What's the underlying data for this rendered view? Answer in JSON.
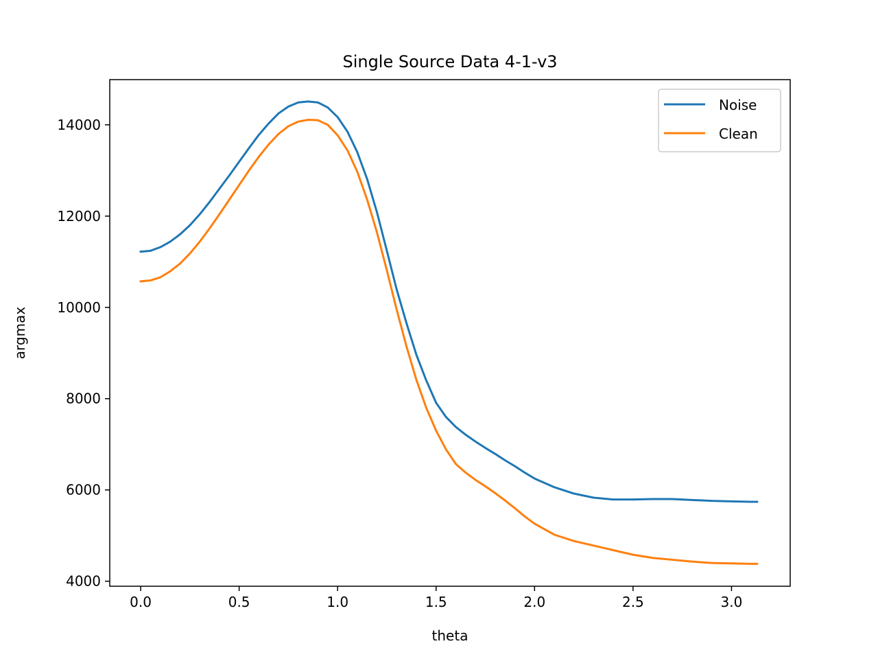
{
  "chart_data": {
    "type": "line",
    "title": "Single Source Data 4-1-v3",
    "xlabel": "theta",
    "ylabel": "argmax",
    "xlim": [
      -0.157,
      3.298
    ],
    "ylim": [
      3890,
      14990
    ],
    "xticks": [
      0.0,
      0.5,
      1.0,
      1.5,
      2.0,
      2.5,
      3.0
    ],
    "xtick_labels": [
      "0.0",
      "0.5",
      "1.0",
      "1.5",
      "2.0",
      "2.5",
      "3.0"
    ],
    "yticks": [
      4000,
      6000,
      8000,
      10000,
      12000,
      14000
    ],
    "ytick_labels": [
      "4000",
      "6000",
      "8000",
      "10000",
      "12000",
      "14000"
    ],
    "grid": false,
    "legend_position": "top-right",
    "series": [
      {
        "name": "Noise",
        "color": "#1f77b4",
        "x": [
          0.0,
          0.05,
          0.1,
          0.15,
          0.2,
          0.25,
          0.3,
          0.35,
          0.4,
          0.45,
          0.5,
          0.55,
          0.6,
          0.65,
          0.7,
          0.75,
          0.8,
          0.85,
          0.9,
          0.95,
          1.0,
          1.05,
          1.1,
          1.15,
          1.2,
          1.25,
          1.3,
          1.35,
          1.4,
          1.45,
          1.5,
          1.55,
          1.6,
          1.65,
          1.7,
          1.75,
          1.8,
          1.85,
          1.9,
          1.95,
          2.0,
          2.1,
          2.2,
          2.3,
          2.4,
          2.5,
          2.6,
          2.7,
          2.8,
          2.9,
          3.0,
          3.1,
          3.13
        ],
        "y": [
          11220,
          11240,
          11320,
          11440,
          11600,
          11800,
          12040,
          12310,
          12600,
          12890,
          13190,
          13490,
          13780,
          14030,
          14250,
          14400,
          14490,
          14510,
          14490,
          14380,
          14170,
          13850,
          13400,
          12810,
          12080,
          11240,
          10390,
          9650,
          8960,
          8400,
          7910,
          7600,
          7380,
          7210,
          7060,
          6920,
          6790,
          6650,
          6520,
          6380,
          6250,
          6060,
          5920,
          5830,
          5790,
          5790,
          5800,
          5800,
          5780,
          5760,
          5750,
          5740,
          5740
        ]
      },
      {
        "name": "Clean",
        "color": "#ff7f0e",
        "x": [
          0.0,
          0.05,
          0.1,
          0.15,
          0.2,
          0.25,
          0.3,
          0.35,
          0.4,
          0.45,
          0.5,
          0.55,
          0.6,
          0.65,
          0.7,
          0.75,
          0.8,
          0.85,
          0.9,
          0.95,
          1.0,
          1.05,
          1.1,
          1.15,
          1.2,
          1.25,
          1.3,
          1.35,
          1.4,
          1.45,
          1.5,
          1.55,
          1.6,
          1.65,
          1.7,
          1.75,
          1.8,
          1.85,
          1.9,
          1.95,
          2.0,
          2.1,
          2.2,
          2.3,
          2.4,
          2.5,
          2.6,
          2.7,
          2.8,
          2.9,
          3.0,
          3.1,
          3.13
        ],
        "y": [
          10570,
          10590,
          10660,
          10790,
          10960,
          11180,
          11440,
          11730,
          12040,
          12360,
          12680,
          13000,
          13300,
          13570,
          13800,
          13970,
          14070,
          14110,
          14100,
          14000,
          13770,
          13440,
          12970,
          12360,
          11640,
          10810,
          9950,
          9140,
          8410,
          7800,
          7300,
          6890,
          6570,
          6380,
          6220,
          6080,
          5930,
          5770,
          5600,
          5420,
          5260,
          5020,
          4880,
          4780,
          4680,
          4580,
          4510,
          4470,
          4430,
          4400,
          4390,
          4380,
          4380
        ]
      }
    ]
  }
}
